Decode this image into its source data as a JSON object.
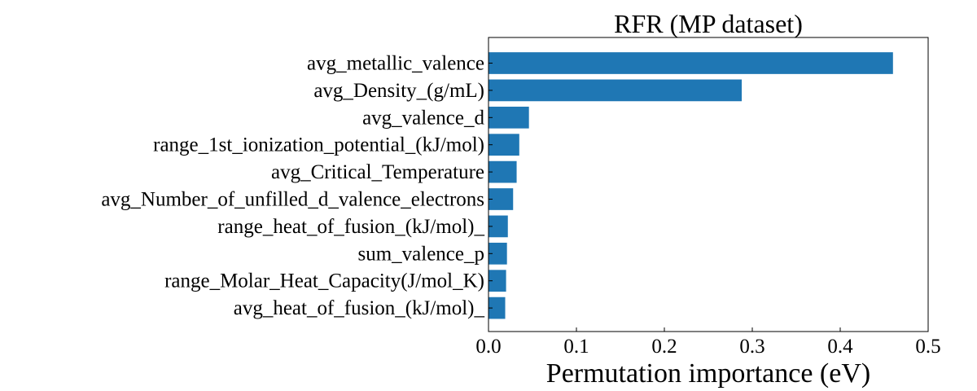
{
  "chart_data": {
    "type": "bar",
    "orientation": "horizontal",
    "title": "RFR (MP dataset)",
    "xlabel": "Permutation importance (eV)",
    "ylabel": "",
    "xlim": [
      0,
      0.5
    ],
    "xticks": [
      0.0,
      0.1,
      0.2,
      0.3,
      0.4,
      0.5
    ],
    "xtick_labels": [
      "0.0",
      "0.1",
      "0.2",
      "0.3",
      "0.4",
      "0.5"
    ],
    "grid": false,
    "bar_color": "#1f77b4",
    "categories": [
      "avg_metallic_valence",
      "avg_Density_(g/mL)",
      "avg_valence_d",
      "range_1st_ionization_potential_(kJ/mol)",
      "avg_Critical_Temperature",
      "avg_Number_of_unfilled_d_valence_electrons",
      "range_heat_of_fusion_(kJ/mol)_",
      "sum_valence_p",
      "range_Molar_Heat_Capacity(J/mol_K)",
      "avg_heat_of_fusion_(kJ/mol)_"
    ],
    "values": [
      0.46,
      0.288,
      0.046,
      0.035,
      0.032,
      0.028,
      0.022,
      0.021,
      0.02,
      0.019
    ]
  }
}
